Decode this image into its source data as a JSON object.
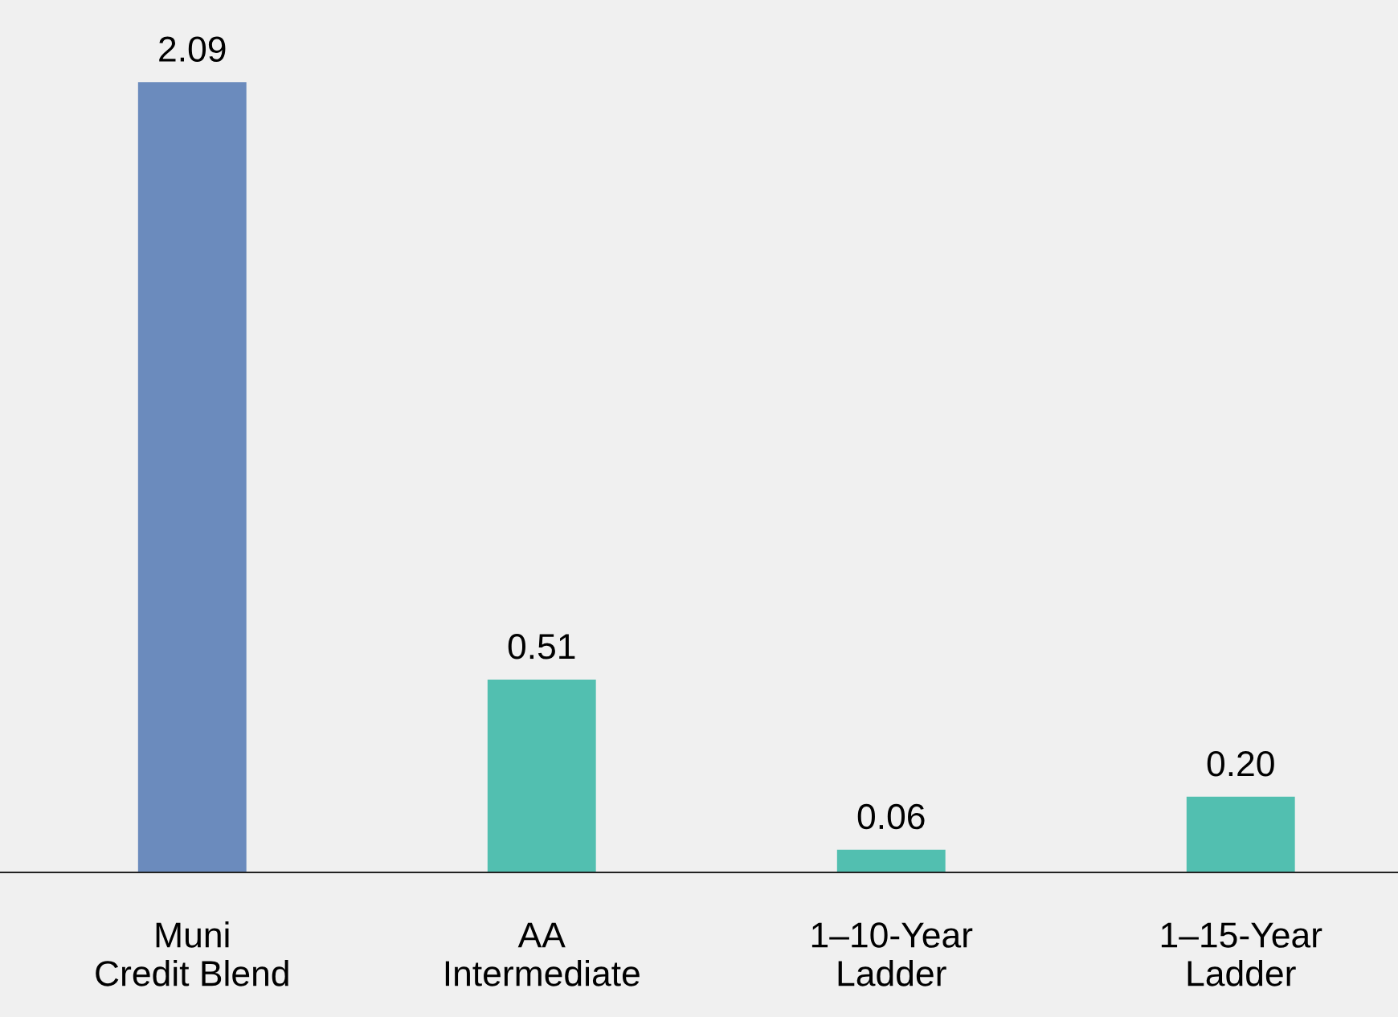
{
  "chart_data": {
    "type": "bar",
    "categories": [
      "Muni\nCredit Blend",
      "AA\nIntermediate",
      "1–10-Year\nLadder",
      "1–15-Year\nLadder"
    ],
    "values": [
      2.09,
      0.51,
      0.06,
      0.2
    ],
    "colors": [
      "#6b8bbd",
      "#52bfb0",
      "#52bfb0",
      "#52bfb0"
    ],
    "value_labels": [
      "2.09",
      "0.51",
      "0.06",
      "0.20"
    ],
    "grid": false,
    "legend": false
  }
}
